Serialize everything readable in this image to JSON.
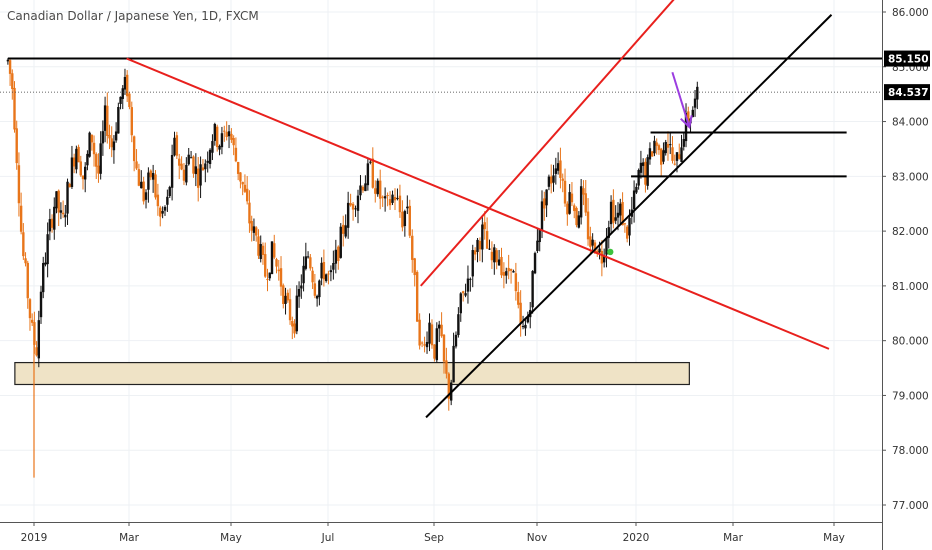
{
  "title": "Canadian Dollar / Japanese Yen, 1D, FXCM",
  "chart_data": {
    "type": "candlestick",
    "title": "Canadian Dollar / Japanese Yen, 1D, FXCM",
    "symbol": "CADJPY",
    "timeframe": "1D",
    "source": "FXCM",
    "ylim": [
      76.8,
      86.2
    ],
    "y_ticks": [
      "86.000",
      "85.000",
      "84.000",
      "83.000",
      "82.000",
      "81.000",
      "80.000",
      "79.000",
      "78.000",
      "77.000"
    ],
    "y_tick_values": [
      86,
      85,
      84,
      83,
      82,
      81,
      80,
      79,
      78,
      77
    ],
    "x_ticks": [
      "2019",
      "Mar",
      "May",
      "Jul",
      "Sep",
      "Nov",
      "2020",
      "Mar",
      "May"
    ],
    "x_tick_months": [
      0,
      2,
      4,
      6,
      8,
      10,
      12,
      14,
      16
    ],
    "xlim_months": [
      -0.55,
      17.25
    ],
    "last_price_label": "84.537",
    "last_price": 84.537,
    "resistance_label": "85.150",
    "resistance_price": 85.15,
    "candle_up_color": "#111111",
    "candle_down_color": "#e8751a",
    "price_path": [
      [
        -0.55,
        85.1
      ],
      [
        -0.45,
        84.6
      ],
      [
        -0.35,
        83.2
      ],
      [
        -0.25,
        81.7
      ],
      [
        -0.15,
        81.0
      ],
      [
        -0.05,
        80.2
      ],
      [
        0.05,
        79.8
      ],
      [
        0.15,
        81.0
      ],
      [
        0.3,
        81.9
      ],
      [
        0.45,
        82.6
      ],
      [
        0.6,
        82.1
      ],
      [
        0.75,
        83.0
      ],
      [
        0.9,
        83.6
      ],
      [
        1.05,
        82.9
      ],
      [
        1.2,
        83.8
      ],
      [
        1.35,
        83.0
      ],
      [
        1.5,
        84.1
      ],
      [
        1.65,
        83.5
      ],
      [
        1.8,
        84.4
      ],
      [
        1.95,
        84.7
      ],
      [
        2.05,
        83.9
      ],
      [
        2.15,
        83.1
      ],
      [
        2.3,
        82.6
      ],
      [
        2.45,
        83.1
      ],
      [
        2.6,
        82.2
      ],
      [
        2.75,
        82.5
      ],
      [
        2.9,
        83.6
      ],
      [
        3.05,
        83.0
      ],
      [
        3.2,
        83.4
      ],
      [
        3.35,
        83.0
      ],
      [
        3.5,
        83.3
      ],
      [
        3.65,
        83.8
      ],
      [
        3.8,
        83.6
      ],
      [
        3.95,
        83.9
      ],
      [
        4.1,
        83.3
      ],
      [
        4.25,
        82.8
      ],
      [
        4.4,
        82.1
      ],
      [
        4.55,
        81.8
      ],
      [
        4.7,
        81.2
      ],
      [
        4.85,
        81.6
      ],
      [
        5.0,
        81.2
      ],
      [
        5.15,
        80.6
      ],
      [
        5.3,
        80.3
      ],
      [
        5.45,
        81.1
      ],
      [
        5.6,
        81.6
      ],
      [
        5.75,
        80.9
      ],
      [
        5.9,
        81.3
      ],
      [
        6.05,
        81.1
      ],
      [
        6.2,
        81.7
      ],
      [
        6.35,
        82.3
      ],
      [
        6.5,
        82.6
      ],
      [
        6.65,
        82.9
      ],
      [
        6.8,
        83.1
      ],
      [
        6.95,
        82.7
      ],
      [
        7.1,
        82.4
      ],
      [
        7.25,
        82.7
      ],
      [
        7.4,
        82.2
      ],
      [
        7.5,
        82.5
      ],
      [
        7.6,
        81.4
      ],
      [
        7.7,
        80.3
      ],
      [
        7.8,
        79.7
      ],
      [
        7.9,
        80.4
      ],
      [
        8.0,
        79.8
      ],
      [
        8.1,
        80.2
      ],
      [
        8.2,
        79.5
      ],
      [
        8.3,
        79.0
      ],
      [
        8.4,
        79.9
      ],
      [
        8.5,
        80.6
      ],
      [
        8.65,
        81.1
      ],
      [
        8.8,
        81.7
      ],
      [
        8.95,
        82.0
      ],
      [
        9.1,
        81.4
      ],
      [
        9.25,
        81.6
      ],
      [
        9.4,
        81.1
      ],
      [
        9.5,
        81.5
      ],
      [
        9.6,
        80.7
      ],
      [
        9.7,
        80.1
      ],
      [
        9.8,
        80.3
      ],
      [
        9.9,
        81.0
      ],
      [
        10.0,
        81.9
      ],
      [
        10.1,
        82.4
      ],
      [
        10.2,
        82.8
      ],
      [
        10.3,
        83.0
      ],
      [
        10.4,
        83.4
      ],
      [
        10.5,
        83.0
      ],
      [
        10.6,
        82.5
      ],
      [
        10.7,
        82.7
      ],
      [
        10.8,
        82.2
      ],
      [
        10.9,
        82.7
      ],
      [
        11.0,
        82.1
      ],
      [
        11.1,
        81.7
      ],
      [
        11.2,
        81.8
      ],
      [
        11.3,
        81.5
      ],
      [
        11.4,
        82.0
      ],
      [
        11.5,
        82.5
      ],
      [
        11.6,
        82.2
      ],
      [
        11.7,
        82.4
      ],
      [
        11.8,
        81.9
      ],
      [
        11.9,
        82.3
      ],
      [
        12.0,
        82.7
      ],
      [
        12.1,
        83.2
      ],
      [
        12.2,
        83.0
      ],
      [
        12.3,
        83.4
      ],
      [
        12.4,
        83.7
      ],
      [
        12.5,
        83.3
      ],
      [
        12.6,
        83.8
      ],
      [
        12.7,
        83.5
      ],
      [
        12.8,
        83.1
      ],
      [
        12.9,
        83.5
      ],
      [
        13.0,
        83.9
      ],
      [
        13.1,
        84.1
      ],
      [
        13.2,
        84.3
      ],
      [
        13.3,
        84.5
      ]
    ],
    "spike_low": {
      "month": 0.0,
      "price": 77.5
    },
    "green_dot": {
      "month": 11.48,
      "price": 81.62,
      "color": "#3dc13d"
    },
    "support_zone": {
      "from_month": -0.55,
      "to_month": 13.1,
      "low": 79.2,
      "high": 79.6,
      "fill": "#efe3c6",
      "stroke": "#222222"
    },
    "horizontal_lines": [
      {
        "name": "resistance-line",
        "price": 85.15,
        "from_month": -0.55,
        "to_month": 17.25,
        "color": "#000000",
        "width": 2
      },
      {
        "name": "level-83-8",
        "price": 83.8,
        "from_month": 12.3,
        "to_month": 16.25,
        "color": "#000000",
        "width": 2
      },
      {
        "name": "level-83-0",
        "price": 83.0,
        "from_month": 11.9,
        "to_month": 16.25,
        "color": "#000000",
        "width": 2
      }
    ],
    "trend_lines": [
      {
        "name": "red-downtrend-line",
        "from": [
          1.95,
          85.15
        ],
        "to": [
          15.9,
          79.85
        ],
        "color": "#e8201d"
      },
      {
        "name": "red-channel-line",
        "from": [
          7.75,
          81.0
        ],
        "to": [
          12.8,
          86.25
        ],
        "color": "#e8201d"
      },
      {
        "name": "black-uptrend-line",
        "from": [
          7.85,
          78.6
        ],
        "to": [
          15.95,
          85.95
        ],
        "color": "#000000"
      }
    ],
    "arrow": {
      "from": [
        12.75,
        84.9
      ],
      "to": [
        13.1,
        83.9
      ],
      "color": "#9b3de0"
    }
  }
}
